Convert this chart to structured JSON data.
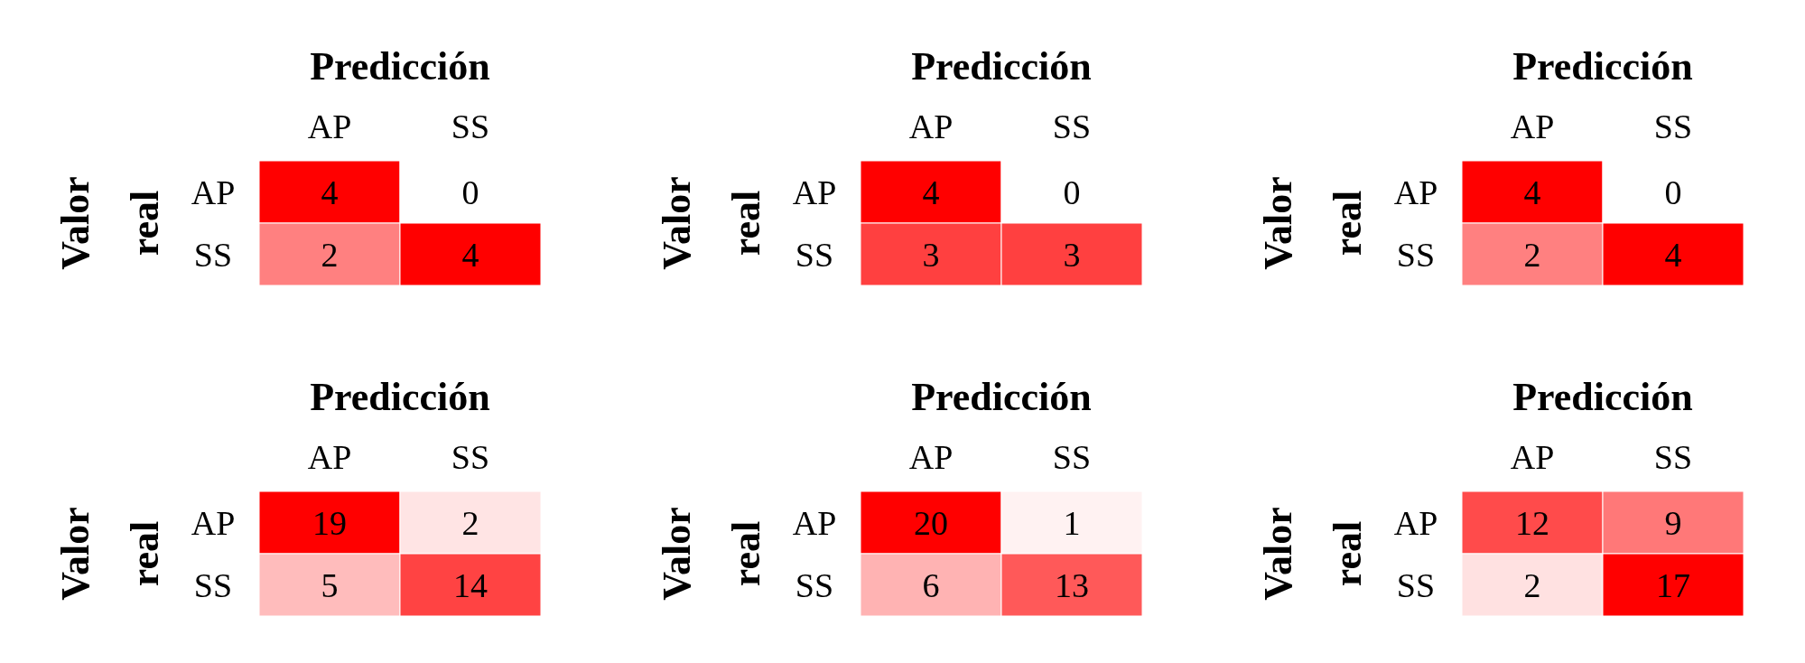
{
  "chart_data": [
    {
      "type": "heatmap",
      "xlabel": "Predicción",
      "ylabel": "Valor real",
      "categories": [
        "AP",
        "SS"
      ],
      "y_categories": [
        "AP",
        "SS"
      ],
      "cells": [
        [
          4,
          0
        ],
        [
          2,
          4
        ]
      ],
      "color": "#ff0000",
      "data_labels": true
    },
    {
      "type": "heatmap",
      "xlabel": "Predicción",
      "ylabel": "Valor real",
      "categories": [
        "AP",
        "SS"
      ],
      "y_categories": [
        "AP",
        "SS"
      ],
      "cells": [
        [
          4,
          0
        ],
        [
          3,
          3
        ]
      ],
      "color": "#ff0000",
      "data_labels": true
    },
    {
      "type": "heatmap",
      "xlabel": "Predicción",
      "ylabel": "Valor real",
      "categories": [
        "AP",
        "SS"
      ],
      "y_categories": [
        "AP",
        "SS"
      ],
      "cells": [
        [
          4,
          0
        ],
        [
          2,
          4
        ]
      ],
      "color": "#ff0000",
      "data_labels": true
    },
    {
      "type": "heatmap",
      "xlabel": "Predicción",
      "ylabel": "Valor real",
      "categories": [
        "AP",
        "SS"
      ],
      "y_categories": [
        "AP",
        "SS"
      ],
      "cells": [
        [
          19,
          2
        ],
        [
          5,
          14
        ]
      ],
      "color": "#ff0000",
      "data_labels": true
    },
    {
      "type": "heatmap",
      "xlabel": "Predicción",
      "ylabel": "Valor real",
      "categories": [
        "AP",
        "SS"
      ],
      "y_categories": [
        "AP",
        "SS"
      ],
      "cells": [
        [
          20,
          1
        ],
        [
          6,
          13
        ]
      ],
      "color": "#ff0000",
      "data_labels": true
    },
    {
      "type": "heatmap",
      "xlabel": "Predicción",
      "ylabel": "Valor real",
      "categories": [
        "AP",
        "SS"
      ],
      "y_categories": [
        "AP",
        "SS"
      ],
      "cells": [
        [
          12,
          9
        ],
        [
          2,
          17
        ]
      ],
      "color": "#ff0000",
      "data_labels": true
    }
  ]
}
